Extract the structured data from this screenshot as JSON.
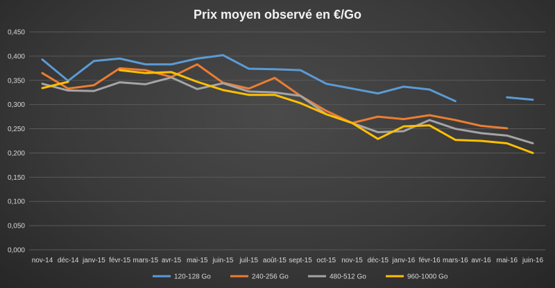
{
  "chart_data": {
    "type": "line",
    "title": "Prix moyen observé en €/Go",
    "xlabel": "",
    "ylabel": "",
    "ylim": [
      0,
      0.45
    ],
    "yticks": [
      "0,000",
      "0,050",
      "0,100",
      "0,150",
      "0,200",
      "0,250",
      "0,300",
      "0,350",
      "0,400",
      "0,450"
    ],
    "grid": true,
    "legend_position": "bottom",
    "categories": [
      "nov-14",
      "déc-14",
      "janv-15",
      "févr-15",
      "mars-15",
      "avr-15",
      "mai-15",
      "juin-15",
      "juil-15",
      "août-15",
      "sept-15",
      "oct-15",
      "nov-15",
      "déc-15",
      "janv-16",
      "févr-16",
      "mars-16",
      "avr-16",
      "mai-16",
      "juin-16"
    ],
    "series": [
      {
        "name": "120-128 Go",
        "color": "#5b9bd5",
        "values": [
          0.393,
          0.349,
          0.39,
          0.395,
          0.383,
          0.383,
          0.395,
          0.402,
          0.374,
          0.373,
          0.371,
          0.343,
          0.333,
          0.323,
          0.337,
          0.331,
          0.307,
          null,
          0.315,
          0.31
        ]
      },
      {
        "name": "240-256 Go",
        "color": "#ed7d31",
        "values": [
          0.365,
          0.333,
          0.34,
          0.375,
          0.371,
          0.357,
          0.383,
          0.345,
          0.333,
          0.355,
          0.318,
          0.287,
          0.262,
          0.275,
          0.27,
          0.278,
          0.268,
          0.256,
          0.251,
          null
        ]
      },
      {
        "name": "480-512 Go",
        "color": "#a5a5a5",
        "values": [
          0.343,
          0.329,
          0.328,
          0.346,
          0.342,
          0.356,
          0.332,
          0.344,
          0.327,
          0.325,
          0.318,
          0.28,
          0.262,
          0.243,
          0.245,
          0.268,
          0.25,
          0.241,
          0.236,
          0.22
        ]
      },
      {
        "name": "960-1000 Go",
        "color": "#ffc000",
        "values": [
          0.334,
          0.347,
          null,
          0.371,
          0.365,
          0.367,
          0.347,
          0.33,
          0.32,
          0.32,
          0.303,
          0.28,
          0.262,
          0.229,
          0.255,
          0.257,
          0.227,
          0.225,
          0.22,
          0.2
        ]
      }
    ]
  }
}
